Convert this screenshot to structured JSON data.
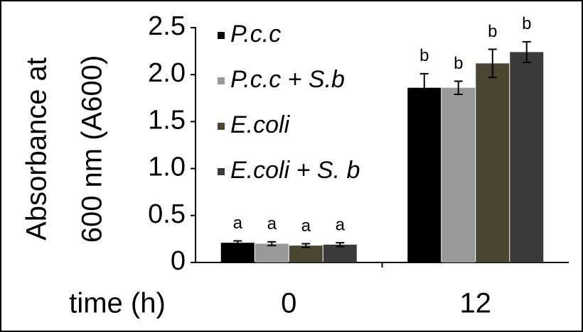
{
  "chart_data": {
    "type": "bar",
    "y_label_lines": [
      "Absorbance at",
      "600 nm (A600)"
    ],
    "x_label": "time (h)",
    "categories": [
      "0",
      "12"
    ],
    "series": [
      {
        "name": "P.c.c",
        "color": "#000000",
        "values": [
          0.21,
          1.86
        ],
        "errors": [
          0.02,
          0.15
        ],
        "labels": [
          "a",
          "b"
        ]
      },
      {
        "name": "P.c.c + S.b",
        "color": "#999999",
        "values": [
          0.2,
          1.86
        ],
        "errors": [
          0.02,
          0.07
        ],
        "labels": [
          "a",
          "b"
        ]
      },
      {
        "name": "E.coli",
        "color": "#4a4631",
        "values": [
          0.18,
          2.12
        ],
        "errors": [
          0.02,
          0.15
        ],
        "labels": [
          "a",
          "b"
        ]
      },
      {
        "name": "E.coli + S. b",
        "color": "#3a3a3a",
        "values": [
          0.19,
          2.24
        ],
        "errors": [
          0.02,
          0.11
        ],
        "labels": [
          "a",
          "b"
        ]
      }
    ],
    "ylim": [
      0,
      2.5
    ],
    "yticks": [
      0,
      0.5,
      {
        "value": 1,
        "label": "1.0"
      },
      1.5,
      {
        "value": 2,
        "label": "2.0"
      },
      2.5
    ],
    "legend": "top-left"
  }
}
